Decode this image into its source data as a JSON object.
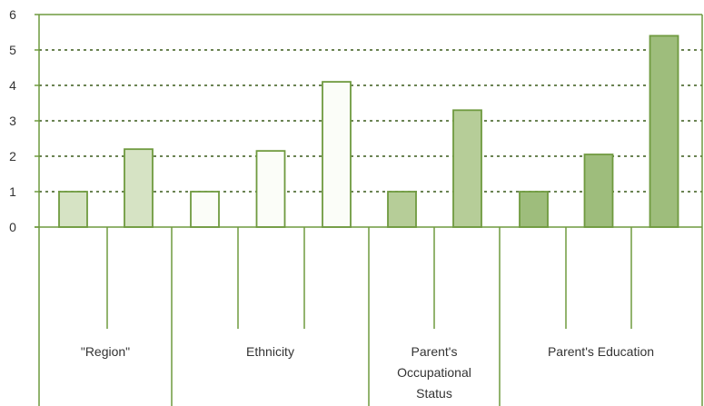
{
  "chart_data": {
    "type": "bar",
    "title": "",
    "xlabel": "",
    "ylabel": "",
    "ylim": [
      0,
      6
    ],
    "yticks": [
      "0",
      "1",
      "2",
      "3",
      "4",
      "5",
      "6"
    ],
    "grid": true,
    "groups": [
      {
        "label": [
          "\"Region\""
        ],
        "values": [
          1.0,
          2.2
        ],
        "fills": [
          "#d6e3c4",
          "#d6e3c4"
        ]
      },
      {
        "label": [
          "Ethnicity"
        ],
        "values": [
          1.0,
          2.15,
          4.1
        ],
        "fills": [
          "#fbfdf8",
          "#fbfdf8",
          "#fbfdf8"
        ]
      },
      {
        "label": [
          "Parent's",
          "Occupational",
          "Status"
        ],
        "values": [
          1.0,
          3.3
        ],
        "fills": [
          "#b6cd98",
          "#b6cd98"
        ]
      },
      {
        "label": [
          "Parent's Education"
        ],
        "values": [
          1.0,
          2.05,
          5.4
        ],
        "fills": [
          "#9ebd7c",
          "#9ebd7c",
          "#9ebd7c"
        ]
      }
    ]
  },
  "colors": {
    "axis": "#6f9a3f",
    "bar_stroke": "#6f9a3f",
    "grid": "#3a5a1a",
    "text": "#333333"
  }
}
